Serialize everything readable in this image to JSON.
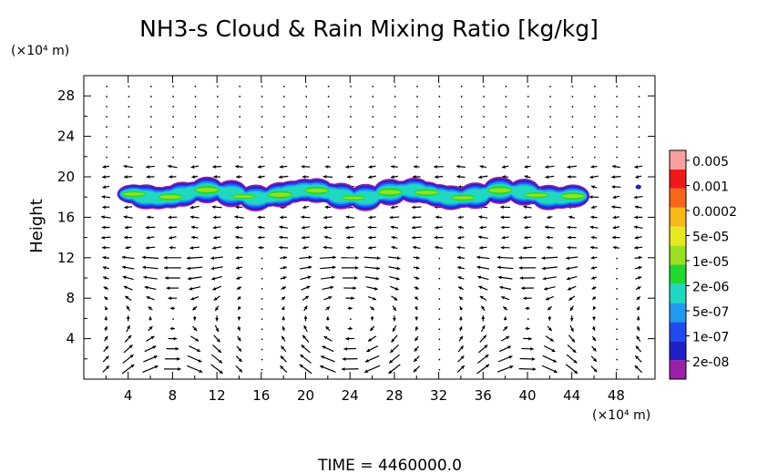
{
  "chart_data": {
    "type": "heatmap",
    "title": "NH3-s Cloud & Rain Mixing Ratio [kg/kg]",
    "ylabel": "Height",
    "xlabel": "",
    "y_unit": "(×10⁴ m)",
    "x_unit": "(×10⁴ m)",
    "xlim": [
      0,
      51.5
    ],
    "ylim": [
      0,
      30
    ],
    "xticks": [
      4,
      8,
      12,
      16,
      20,
      24,
      28,
      32,
      36,
      40,
      44,
      48
    ],
    "yticks": [
      4,
      8,
      12,
      16,
      20,
      24,
      28
    ],
    "grid": false,
    "overlay": "wind vectors",
    "colorbar": {
      "labels": [
        "0.005",
        "0.001",
        "0.0002",
        "5e-05",
        "1e-05",
        "2e-06",
        "5e-07",
        "1e-07",
        "2e-08"
      ],
      "colors": [
        "#9b1fa8",
        "#2020c8",
        "#1f4cf0",
        "#1f9cf0",
        "#20d8c0",
        "#20d830",
        "#98e020",
        "#e8e820",
        "#f8b818",
        "#f86818",
        "#f01818",
        "#f8a0a0"
      ]
    },
    "cloud_layer": {
      "x_range": [
        4,
        45
      ],
      "y_range": [
        17,
        20
      ],
      "max_level": "1e-05",
      "isolated_cell": {
        "x": 50,
        "y": 19
      }
    },
    "footer": "TIME = 4460000.0"
  }
}
